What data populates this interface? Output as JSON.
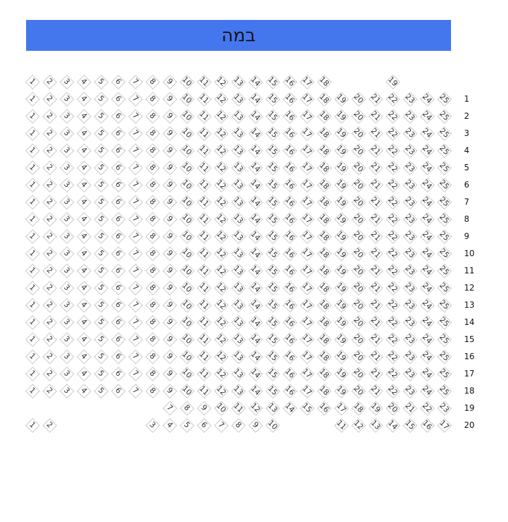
{
  "stage": {
    "label": "במה",
    "color": "#4477ee"
  },
  "rows": [
    {
      "label": "",
      "seats": [
        1,
        2,
        3,
        4,
        5,
        6,
        7,
        8,
        9,
        10,
        11,
        12,
        13,
        14,
        15,
        16,
        17,
        18,
        null,
        null,
        null,
        19
      ]
    },
    {
      "label": "1",
      "seats": [
        1,
        2,
        3,
        4,
        5,
        6,
        7,
        8,
        9,
        10,
        11,
        12,
        13,
        14,
        15,
        16,
        17,
        18,
        19,
        20,
        21,
        22,
        23,
        24,
        25
      ]
    },
    {
      "label": "2",
      "seats": [
        1,
        2,
        3,
        4,
        5,
        6,
        7,
        8,
        9,
        10,
        11,
        12,
        13,
        14,
        15,
        16,
        17,
        18,
        19,
        20,
        21,
        22,
        23,
        24,
        25
      ]
    },
    {
      "label": "3",
      "seats": [
        1,
        2,
        3,
        4,
        5,
        6,
        7,
        8,
        9,
        10,
        11,
        12,
        13,
        14,
        15,
        16,
        17,
        18,
        19,
        20,
        21,
        22,
        23,
        24,
        25
      ]
    },
    {
      "label": "4",
      "seats": [
        1,
        2,
        3,
        4,
        5,
        6,
        7,
        8,
        9,
        10,
        11,
        12,
        13,
        14,
        15,
        16,
        17,
        18,
        19,
        20,
        21,
        22,
        23,
        24,
        25
      ]
    },
    {
      "label": "5",
      "seats": [
        1,
        2,
        3,
        4,
        5,
        6,
        7,
        8,
        9,
        10,
        11,
        12,
        13,
        14,
        15,
        16,
        17,
        18,
        19,
        20,
        21,
        22,
        23,
        24,
        25
      ]
    },
    {
      "label": "6",
      "seats": [
        1,
        2,
        3,
        4,
        5,
        6,
        7,
        8,
        9,
        10,
        11,
        12,
        13,
        14,
        15,
        16,
        17,
        18,
        19,
        20,
        21,
        22,
        23,
        24,
        25
      ]
    },
    {
      "label": "7",
      "seats": [
        1,
        2,
        3,
        4,
        5,
        6,
        7,
        8,
        9,
        10,
        11,
        12,
        13,
        14,
        15,
        16,
        17,
        18,
        19,
        20,
        21,
        22,
        23,
        24,
        25
      ]
    },
    {
      "label": "8",
      "seats": [
        1,
        2,
        3,
        4,
        5,
        6,
        7,
        8,
        9,
        10,
        11,
        12,
        13,
        14,
        15,
        16,
        17,
        18,
        19,
        20,
        21,
        22,
        23,
        24,
        25
      ]
    },
    {
      "label": "9",
      "seats": [
        1,
        2,
        3,
        4,
        5,
        6,
        7,
        8,
        9,
        10,
        11,
        12,
        13,
        14,
        15,
        16,
        17,
        18,
        19,
        20,
        21,
        22,
        23,
        24,
        25
      ]
    },
    {
      "label": "10",
      "seats": [
        1,
        2,
        3,
        4,
        5,
        6,
        7,
        8,
        9,
        10,
        11,
        12,
        13,
        14,
        15,
        16,
        17,
        18,
        19,
        20,
        21,
        22,
        23,
        24,
        25
      ]
    },
    {
      "label": "11",
      "seats": [
        1,
        2,
        3,
        4,
        5,
        6,
        7,
        8,
        9,
        10,
        11,
        12,
        13,
        14,
        15,
        16,
        17,
        18,
        19,
        20,
        21,
        22,
        23,
        24,
        25
      ]
    },
    {
      "label": "12",
      "seats": [
        1,
        2,
        3,
        4,
        5,
        6,
        7,
        8,
        9,
        10,
        11,
        12,
        13,
        14,
        15,
        16,
        17,
        18,
        19,
        20,
        21,
        22,
        23,
        24,
        25
      ]
    },
    {
      "label": "13",
      "seats": [
        1,
        2,
        3,
        4,
        5,
        6,
        7,
        8,
        9,
        10,
        11,
        12,
        13,
        14,
        15,
        16,
        17,
        18,
        19,
        20,
        21,
        22,
        23,
        24,
        25
      ]
    },
    {
      "label": "14",
      "seats": [
        1,
        2,
        3,
        4,
        5,
        6,
        7,
        8,
        9,
        10,
        11,
        12,
        13,
        14,
        15,
        16,
        17,
        18,
        19,
        20,
        21,
        22,
        23,
        24,
        25
      ]
    },
    {
      "label": "15",
      "seats": [
        1,
        2,
        3,
        4,
        5,
        6,
        7,
        8,
        9,
        10,
        11,
        12,
        13,
        14,
        15,
        16,
        17,
        18,
        19,
        20,
        21,
        22,
        23,
        24,
        25
      ]
    },
    {
      "label": "16",
      "seats": [
        1,
        2,
        3,
        4,
        5,
        6,
        7,
        8,
        9,
        10,
        11,
        12,
        13,
        14,
        15,
        16,
        17,
        18,
        19,
        20,
        21,
        22,
        23,
        24,
        25
      ]
    },
    {
      "label": "17",
      "seats": [
        1,
        2,
        3,
        4,
        5,
        6,
        7,
        8,
        9,
        10,
        11,
        12,
        13,
        14,
        15,
        16,
        17,
        18,
        19,
        20,
        21,
        22,
        23,
        24,
        25
      ]
    },
    {
      "label": "18",
      "seats": [
        1,
        2,
        3,
        4,
        5,
        6,
        7,
        8,
        9,
        10,
        11,
        12,
        13,
        14,
        15,
        16,
        17,
        18,
        19,
        20,
        21,
        22,
        23,
        24,
        25
      ]
    },
    {
      "label": "19",
      "seats": [
        null,
        null,
        null,
        null,
        null,
        null,
        null,
        null,
        7,
        8,
        9,
        10,
        11,
        12,
        13,
        14,
        15,
        16,
        17,
        18,
        19,
        20,
        21,
        22,
        23
      ]
    },
    {
      "label": "20",
      "seats": [
        1,
        2,
        null,
        null,
        null,
        null,
        null,
        3,
        4,
        5,
        6,
        7,
        8,
        9,
        10,
        null,
        null,
        null,
        11,
        12,
        13,
        14,
        15,
        16,
        17
      ]
    }
  ]
}
